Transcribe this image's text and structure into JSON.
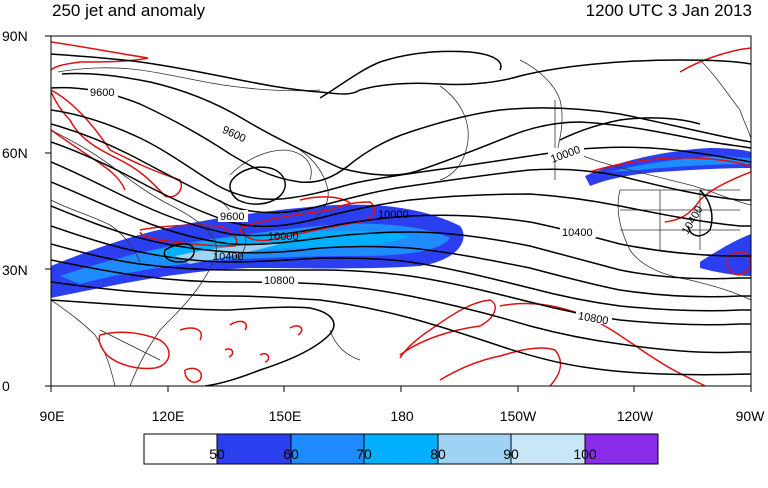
{
  "titles": {
    "left": "250 jet and anomaly",
    "right": "1200 UTC 3 Jan 2013"
  },
  "axes": {
    "lat_labels": [
      "90N",
      "60N",
      "30N",
      "0"
    ],
    "lon_labels": [
      "90E",
      "120E",
      "150E",
      "180",
      "150W",
      "120W",
      "90W"
    ]
  },
  "colorbar": {
    "labels": [
      "50",
      "60",
      "70",
      "80",
      "90",
      "100"
    ],
    "colors": [
      "#ffffff",
      "#2b3ff0",
      "#1e8bff",
      "#00b0ff",
      "#9ed3f4",
      "#c8e6f8",
      "#8a2bea"
    ]
  },
  "contour_labels": [
    "9600",
    "9600",
    "9600",
    "10000",
    "10000",
    "10000",
    "10400",
    "10400",
    "10400",
    "10800",
    "10800"
  ],
  "colors": {
    "height_contour": "#000000",
    "anomaly_contour": "#dd1111"
  }
}
